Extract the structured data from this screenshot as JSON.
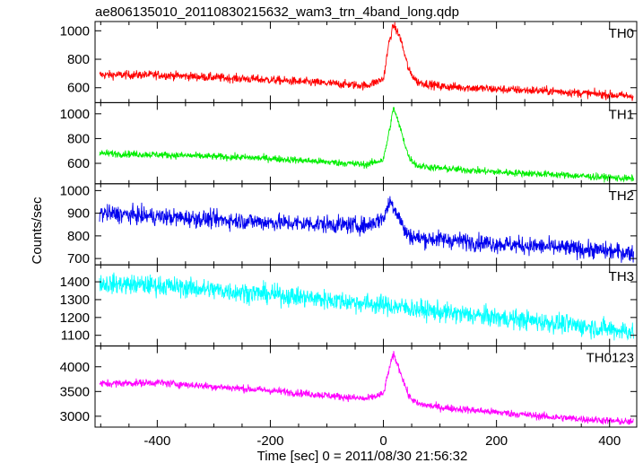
{
  "chart_data": {
    "type": "line",
    "title": "ae806135010_20110830215632_wam3_trn_4band_long.qdp",
    "xlabel": "Time [sec] 0 = 2011/08/30 21:56:32",
    "ylabel": "Counts/sec",
    "xlim": [
      -510,
      448
    ],
    "x_ticks": [
      -400,
      -200,
      0,
      200,
      400
    ],
    "panels": [
      {
        "name": "TH0",
        "color": "#ff0000",
        "ylim": [
          495,
          1065
        ],
        "y_ticks": [
          600,
          800,
          1000
        ],
        "profile": [
          [
            -500,
            690
          ],
          [
            -400,
            690
          ],
          [
            -200,
            655
          ],
          [
            -30,
            615
          ],
          [
            0,
            660
          ],
          [
            10,
            920
          ],
          [
            18,
            1040
          ],
          [
            30,
            950
          ],
          [
            45,
            720
          ],
          [
            60,
            640
          ],
          [
            100,
            610
          ],
          [
            200,
            590
          ],
          [
            300,
            575
          ],
          [
            440,
            540
          ]
        ],
        "noise": 30
      },
      {
        "name": "TH1",
        "color": "#00ee00",
        "ylim": [
          435,
          1090
        ],
        "y_ticks": [
          600,
          800,
          1000
        ],
        "profile": [
          [
            -500,
            680
          ],
          [
            -400,
            670
          ],
          [
            -200,
            640
          ],
          [
            -30,
            590
          ],
          [
            0,
            630
          ],
          [
            10,
            850
          ],
          [
            18,
            1050
          ],
          [
            30,
            880
          ],
          [
            45,
            650
          ],
          [
            60,
            580
          ],
          [
            100,
            560
          ],
          [
            200,
            530
          ],
          [
            300,
            510
          ],
          [
            440,
            475
          ]
        ],
        "noise": 28
      },
      {
        "name": "TH2",
        "color": "#0000ee",
        "ylim": [
          672,
          1030
        ],
        "y_ticks": [
          700,
          800,
          900,
          1000
        ],
        "profile": [
          [
            -500,
            900
          ],
          [
            -400,
            885
          ],
          [
            -200,
            860
          ],
          [
            -30,
            845
          ],
          [
            0,
            880
          ],
          [
            12,
            955
          ],
          [
            25,
            900
          ],
          [
            40,
            810
          ],
          [
            60,
            790
          ],
          [
            100,
            785
          ],
          [
            200,
            765
          ],
          [
            300,
            750
          ],
          [
            440,
            725
          ]
        ],
        "noise": 38
      },
      {
        "name": "TH3",
        "color": "#00ffff",
        "ylim": [
          1040,
          1495
        ],
        "y_ticks": [
          1100,
          1200,
          1300,
          1400
        ],
        "profile": [
          [
            -500,
            1390
          ],
          [
            -400,
            1380
          ],
          [
            -200,
            1330
          ],
          [
            0,
            1270
          ],
          [
            100,
            1230
          ],
          [
            200,
            1200
          ],
          [
            300,
            1170
          ],
          [
            440,
            1120
          ]
        ],
        "noise": 55
      },
      {
        "name": "TH0123",
        "color": "#ff00ff",
        "ylim": [
          2780,
          4420
        ],
        "y_ticks": [
          3000,
          3500,
          4000
        ],
        "profile": [
          [
            -500,
            3660
          ],
          [
            -400,
            3680
          ],
          [
            -200,
            3520
          ],
          [
            -30,
            3350
          ],
          [
            0,
            3450
          ],
          [
            10,
            3950
          ],
          [
            18,
            4250
          ],
          [
            30,
            3900
          ],
          [
            45,
            3400
          ],
          [
            60,
            3250
          ],
          [
            100,
            3180
          ],
          [
            200,
            3080
          ],
          [
            300,
            2980
          ],
          [
            440,
            2880
          ]
        ],
        "noise": 75
      }
    ]
  }
}
